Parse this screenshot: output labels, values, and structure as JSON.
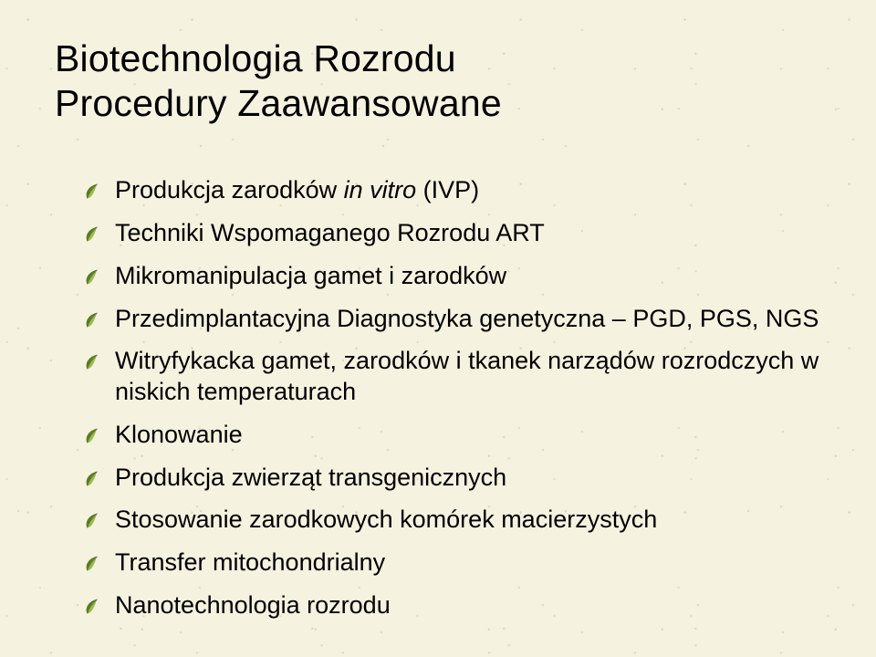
{
  "slide": {
    "background_color": "#f5f2e0",
    "text_color": "#000000",
    "title": {
      "line1": "Biotechnologia Rozrodu",
      "line2": "Procedury Zaawansowane",
      "fontsize": 41,
      "weight": "normal"
    },
    "bullet": {
      "icon_name": "leaf-bullet-icon",
      "icon_color_dark": "#5a7a2a",
      "icon_color_light": "#9cbb4f",
      "fontsize": 27
    },
    "items": [
      {
        "pre": "Produkcja zarodków ",
        "italic": "in vitro",
        "post": " (IVP)"
      },
      {
        "pre": "Techniki Wspomaganego Rozrodu ART",
        "italic": "",
        "post": ""
      },
      {
        "pre": "Mikromanipulacja gamet i zarodków",
        "italic": "",
        "post": ""
      },
      {
        "pre": "Przedimplantacyjna Diagnostyka  genetyczna – PGD, PGS, NGS",
        "italic": "",
        "post": ""
      },
      {
        "pre": "Witryfykacka gamet, zarodków i tkanek narządów rozrodczych w niskich temperaturach",
        "italic": "",
        "post": ""
      },
      {
        "pre": "Klonowanie",
        "italic": "",
        "post": ""
      },
      {
        "pre": "Produkcja zwierząt transgenicznych",
        "italic": "",
        "post": ""
      },
      {
        "pre": "Stosowanie zarodkowych komórek macierzystych",
        "italic": "",
        "post": ""
      },
      {
        "pre": "Transfer mitochondrialny",
        "italic": "",
        "post": ""
      },
      {
        "pre": "Nanotechnologia rozrodu",
        "italic": "",
        "post": ""
      }
    ]
  }
}
